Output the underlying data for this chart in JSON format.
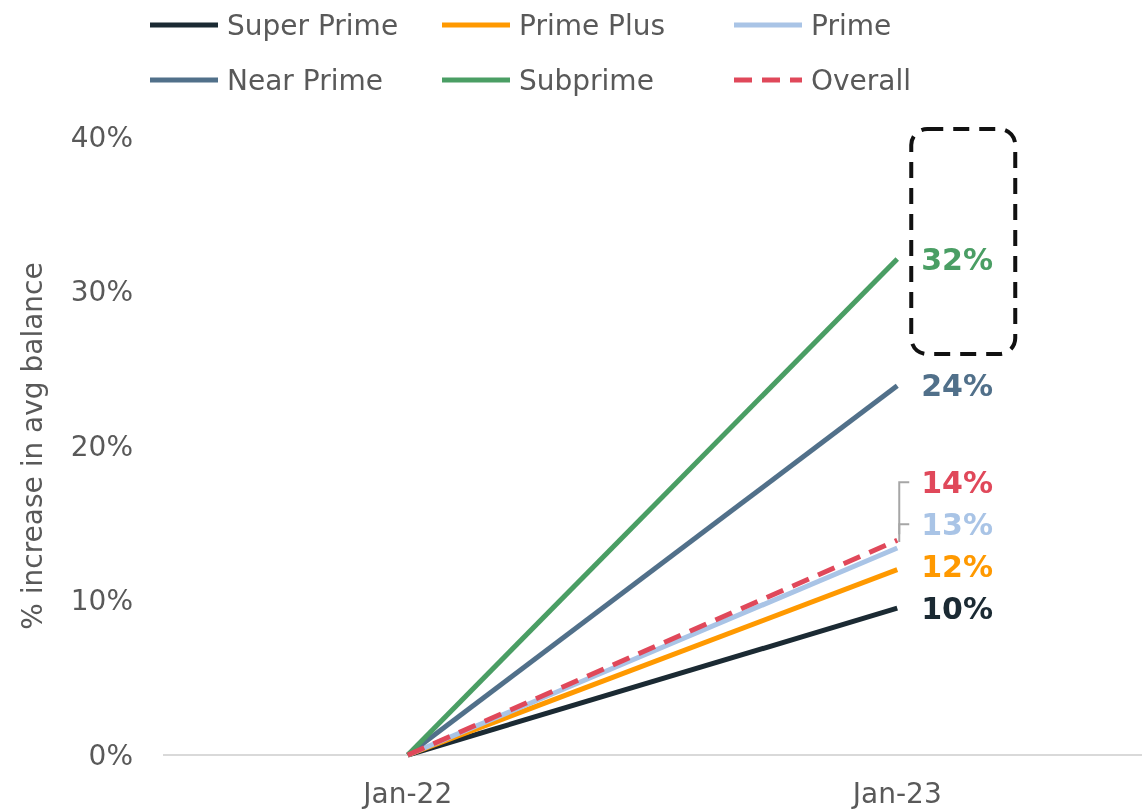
{
  "chart_data": {
    "type": "line",
    "ylabel": "% increase in avg balance",
    "categories": [
      "Jan-22",
      "Jan-23"
    ],
    "ylim": [
      0,
      40
    ],
    "yticks": [
      {
        "value": 0,
        "label": "0%"
      },
      {
        "value": 10,
        "label": "10%"
      },
      {
        "value": 20,
        "label": "20%"
      },
      {
        "value": 30,
        "label": "30%"
      },
      {
        "value": 40,
        "label": "40%"
      }
    ],
    "legend": "top",
    "series": [
      {
        "name": "Super Prime",
        "color": "#1b2a33",
        "values": [
          0,
          9.5
        ],
        "value_labels": [
          null,
          "10%"
        ]
      },
      {
        "name": "Prime Plus",
        "color": "#ff9900",
        "values": [
          0,
          12
        ],
        "value_labels": [
          null,
          "12%"
        ]
      },
      {
        "name": "Prime",
        "color": "#a9c4e6",
        "values": [
          0,
          13.4
        ],
        "value_labels": [
          null,
          "13%"
        ]
      },
      {
        "name": "Near Prime",
        "color": "#51708a",
        "values": [
          0,
          23.9
        ],
        "value_labels": [
          null,
          "24%"
        ]
      },
      {
        "name": "Subprime",
        "color": "#4a9e64",
        "values": [
          0,
          32.1
        ],
        "value_labels": [
          null,
          "32%"
        ]
      },
      {
        "name": "Overall",
        "color": "#e0485a",
        "values": [
          0,
          13.9
        ],
        "value_labels": [
          null,
          "14%"
        ],
        "line_style": "dashed"
      }
    ]
  }
}
